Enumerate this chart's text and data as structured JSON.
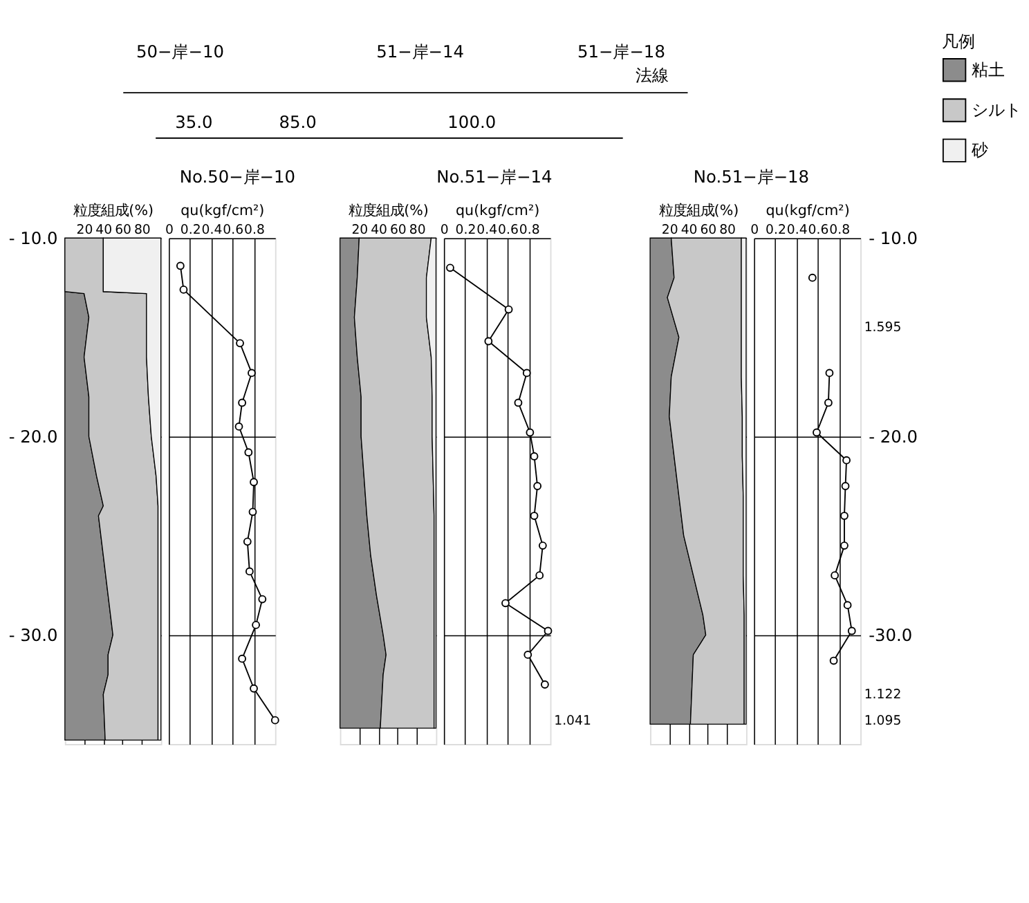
{
  "chart_data": [
    {
      "type": "other",
      "annotations": [
        "50−岸−10",
        "51−岸−14",
        "51−岸−18",
        "法線",
        "35.0",
        "85.0",
        "100.0",
        "No.50−岸−10",
        "No.51−岸−14",
        "No.51−岸−18"
      ]
    },
    {
      "type": "area",
      "xlabel": "粒度組成(%)",
      "orientation": "horizontal",
      "stacked": true,
      "legend": "top right",
      "legend_title": "凡例",
      "grid": true,
      "x": [
        -10,
        -12.7,
        -12.8,
        -14,
        -16,
        -18,
        -20,
        -22,
        -23.5,
        -24,
        -26,
        -28,
        -30,
        -31,
        -32,
        -33,
        -35.3
      ],
      "series": [
        {
          "name": "粘土",
          "color": "#8c8c8c",
          "values": [
            0,
            0,
            20,
            25,
            20,
            25,
            25,
            33,
            40,
            35,
            40,
            45,
            50,
            45,
            45,
            40,
            42
          ]
        },
        {
          "name": "シルト",
          "color": "#c8c8c8",
          "values": [
            40,
            40,
            65,
            60,
            65,
            62,
            65,
            62,
            57,
            62,
            57,
            52,
            47,
            52,
            52,
            57,
            55
          ]
        },
        {
          "name": "砂",
          "color": "#f0f0f0",
          "values": [
            60,
            60,
            15,
            15,
            15,
            13,
            10,
            5,
            3,
            3,
            3,
            3,
            3,
            3,
            3,
            3,
            3
          ]
        }
      ],
      "xlim": [
        0,
        100
      ],
      "xticks": [
        20,
        40,
        60,
        80
      ],
      "ylim": [
        -35.5,
        -10
      ],
      "yticks": [
        {
          "value": -10,
          "label": "- 10.0"
        },
        {
          "value": -20,
          "label": "- 20.0"
        },
        {
          "value": -30,
          "label": "- 30.0"
        }
      ]
    },
    {
      "type": "line",
      "xlabel": "qu(kgf/cm²)",
      "orientation": "horizontal",
      "marker": "circle",
      "grid": true,
      "tick_labels": "x",
      "x": [
        -11.4,
        -12.6,
        -15.3,
        -16.8,
        -18.3,
        -19.5,
        -20.8,
        -22.3,
        -23.8,
        -25.3,
        -26.8,
        -28.2,
        -29.5,
        -31.2,
        -32.7,
        -34.3
      ],
      "series": [
        {
          "color": "#000000",
          "values": [
            0.11,
            0.14,
            0.67,
            0.78,
            0.69,
            0.66,
            0.75,
            0.8,
            0.79,
            0.74,
            0.76,
            0.88,
            0.82,
            0.69,
            0.8,
            1.0
          ]
        }
      ],
      "xlim": [
        0,
        1.0
      ],
      "xticks": [
        0,
        0.2,
        0.4,
        0.6,
        0.8
      ],
      "ylim": [
        -35.5,
        -10
      ],
      "yticks": [
        -10,
        -20,
        -30
      ]
    },
    {
      "type": "area",
      "xlabel": "粒度組成(%)",
      "orientation": "horizontal",
      "stacked": true,
      "grid": true,
      "tick_labels": "x",
      "x": [
        -10,
        -12,
        -14,
        -16,
        -18,
        -20,
        -22,
        -24,
        -26,
        -28,
        -30,
        -31,
        -32,
        -34.7
      ],
      "series": [
        {
          "name": "粘土",
          "color": "#8c8c8c",
          "values": [
            20,
            18,
            15,
            18,
            22,
            22,
            25,
            28,
            32,
            38,
            45,
            48,
            45,
            42
          ]
        },
        {
          "name": "シルト",
          "color": "#c8c8c8",
          "values": [
            75,
            72,
            75,
            77,
            74,
            74,
            72,
            70,
            66,
            60,
            53,
            50,
            53,
            56
          ]
        },
        {
          "name": "砂",
          "color": "#f0f0f0",
          "values": [
            5,
            10,
            10,
            5,
            4,
            4,
            3,
            2,
            2,
            2,
            2,
            2,
            2,
            2
          ]
        }
      ],
      "xlim": [
        0,
        100
      ],
      "xticks": [
        20,
        40,
        60,
        80
      ],
      "ylim": [
        -35.5,
        -10
      ],
      "yticks": [
        -10,
        -20,
        -30
      ]
    },
    {
      "type": "line",
      "xlabel": "qu(kgf/cm²)",
      "orientation": "horizontal",
      "marker": "circle",
      "grid": true,
      "tick_labels": "x",
      "x": [
        -11.5,
        -13.6,
        -15.2,
        -16.8,
        -18.3,
        -19.8,
        -21.0,
        -22.5,
        -24.0,
        -25.5,
        -27.0,
        -28.4,
        -29.8,
        -31.0,
        -32.5
      ],
      "series": [
        {
          "color": "#000000",
          "values": [
            0.06,
            0.61,
            0.42,
            0.78,
            0.7,
            0.81,
            0.85,
            0.88,
            0.85,
            0.93,
            0.9,
            0.58,
            0.98,
            0.79,
            0.95
          ]
        }
      ],
      "annotations": [
        "1.041"
      ],
      "xlim": [
        0,
        1.0
      ],
      "xticks": [
        0,
        0.2,
        0.4,
        0.6,
        0.8
      ],
      "ylim": [
        -35.5,
        -10
      ],
      "yticks": [
        -10,
        -20,
        -30
      ]
    },
    {
      "type": "area",
      "xlabel": "粒度組成(%)",
      "orientation": "horizontal",
      "stacked": true,
      "grid": true,
      "tick_labels": "x",
      "x": [
        -10,
        -12,
        -13,
        -15,
        -17,
        -19,
        -21,
        -23,
        -25,
        -27,
        -29,
        -30,
        -31,
        -34.5
      ],
      "series": [
        {
          "name": "粘土",
          "color": "#8c8c8c",
          "values": [
            22,
            25,
            18,
            30,
            22,
            20,
            25,
            30,
            35,
            45,
            55,
            58,
            45,
            42
          ]
        },
        {
          "name": "シルト",
          "color": "#c8c8c8",
          "values": [
            73,
            70,
            77,
            65,
            73,
            76,
            71,
            67,
            62,
            52,
            43,
            40,
            53,
            56
          ]
        },
        {
          "name": "砂",
          "color": "#f0f0f0",
          "values": [
            5,
            5,
            5,
            5,
            5,
            4,
            4,
            3,
            3,
            3,
            2,
            2,
            2,
            2
          ]
        }
      ],
      "xlim": [
        0,
        100
      ],
      "xticks": [
        20,
        40,
        60,
        80
      ],
      "ylim": [
        -35.5,
        -10
      ],
      "yticks": [
        -10,
        -20,
        -30
      ]
    },
    {
      "type": "line",
      "xlabel": "qu(kgf/cm²)",
      "orientation": "horizontal",
      "marker": "circle",
      "grid": true,
      "x": [
        -12.0,
        -14.5,
        -16.8,
        -18.3,
        -19.8,
        -21.2,
        -22.5,
        -24.0,
        -25.5,
        -27.0,
        -28.5,
        -29.8,
        -31.3
      ],
      "series": [
        {
          "color": "#000000",
          "values": [
            0.55,
            null,
            0.71,
            0.7,
            0.59,
            0.87,
            0.86,
            0.85,
            0.85,
            0.76,
            0.88,
            0.92,
            0.75
          ]
        }
      ],
      "annotations": [
        "1.595",
        "1.122",
        "1.095"
      ],
      "xlim": [
        0,
        1.0
      ],
      "xticks": [
        0,
        0.2,
        0.4,
        0.6,
        0.8
      ],
      "ylim": [
        -35.5,
        -10
      ],
      "yticks": [
        {
          "value": -10,
          "label": "- 10.0"
        },
        {
          "value": -20,
          "label": "- 20.0"
        },
        {
          "value": -30,
          "label": "-30.0"
        }
      ]
    }
  ]
}
